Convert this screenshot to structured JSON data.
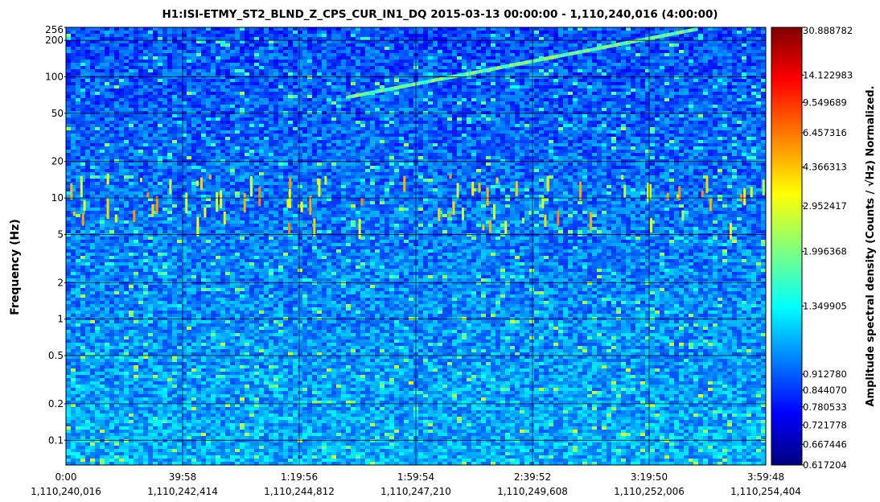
{
  "chart_data": {
    "type": "heatmap",
    "title": "H1:ISI-ETMY_ST2_BLND_Z_CPS_CUR_IN1_DQ 2015-03-13 00:00:00 - 1,110,240,016 (4:00:00)",
    "ylabel": "Frequency (Hz)",
    "yscale": "log",
    "ylim": [
      0.0625,
      256
    ],
    "yticks": [
      {
        "value": 256,
        "label": "256"
      },
      {
        "value": 200,
        "label": "200"
      },
      {
        "value": 100,
        "label": "100"
      },
      {
        "value": 50,
        "label": "50"
      },
      {
        "value": 20,
        "label": "20"
      },
      {
        "value": 10,
        "label": "10"
      },
      {
        "value": 5,
        "label": "5"
      },
      {
        "value": 2,
        "label": "2"
      },
      {
        "value": 1,
        "label": "1"
      },
      {
        "value": 0.5,
        "label": "0.5"
      },
      {
        "value": 0.2,
        "label": "0.2"
      },
      {
        "value": 0.1,
        "label": "0.1"
      }
    ],
    "xlim": [
      1110240016,
      1110254404
    ],
    "xticks": [
      {
        "value": 1110240016,
        "elapsed": "0:00",
        "gps": "1,110,240,016"
      },
      {
        "value": 1110242414,
        "elapsed": "39:58",
        "gps": "1,110,242,414"
      },
      {
        "value": 1110244812,
        "elapsed": "1:19:56",
        "gps": "1,110,244,812"
      },
      {
        "value": 1110247210,
        "elapsed": "1:59:54",
        "gps": "1,110,247,210"
      },
      {
        "value": 1110249608,
        "elapsed": "2:39:52",
        "gps": "1,110,249,608"
      },
      {
        "value": 1110252006,
        "elapsed": "3:19:50",
        "gps": "1,110,252,006"
      },
      {
        "value": 1110254404,
        "elapsed": "3:59:48",
        "gps": "1,110,254,404"
      }
    ],
    "grid": true,
    "colorbar": {
      "label": "Amplitude spectral density (Counts / √Hz) Normalized.",
      "colormap": "jet",
      "ticks": [
        {
          "value": 30.888782,
          "label": "30.888782"
        },
        {
          "value": 14.122983,
          "label": "14.122983"
        },
        {
          "value": 9.549689,
          "label": "9.549689"
        },
        {
          "value": 6.457316,
          "label": "6.457316"
        },
        {
          "value": 4.366313,
          "label": "4.366313"
        },
        {
          "value": 2.952417,
          "label": "2.952417"
        },
        {
          "value": 1.996368,
          "label": "1.996368"
        },
        {
          "value": 1.349905,
          "label": "1.349905"
        },
        {
          "value": 0.91278,
          "label": "0.912780"
        },
        {
          "value": 0.84407,
          "label": "0.844070"
        },
        {
          "value": 0.780533,
          "label": "0.780533"
        },
        {
          "value": 0.721778,
          "label": "0.721778"
        },
        {
          "value": 0.667446,
          "label": "0.667446"
        },
        {
          "value": 0.617204,
          "label": "0.617204"
        }
      ]
    },
    "colors": {
      "background": "#00008f",
      "grid": "#000000"
    }
  }
}
